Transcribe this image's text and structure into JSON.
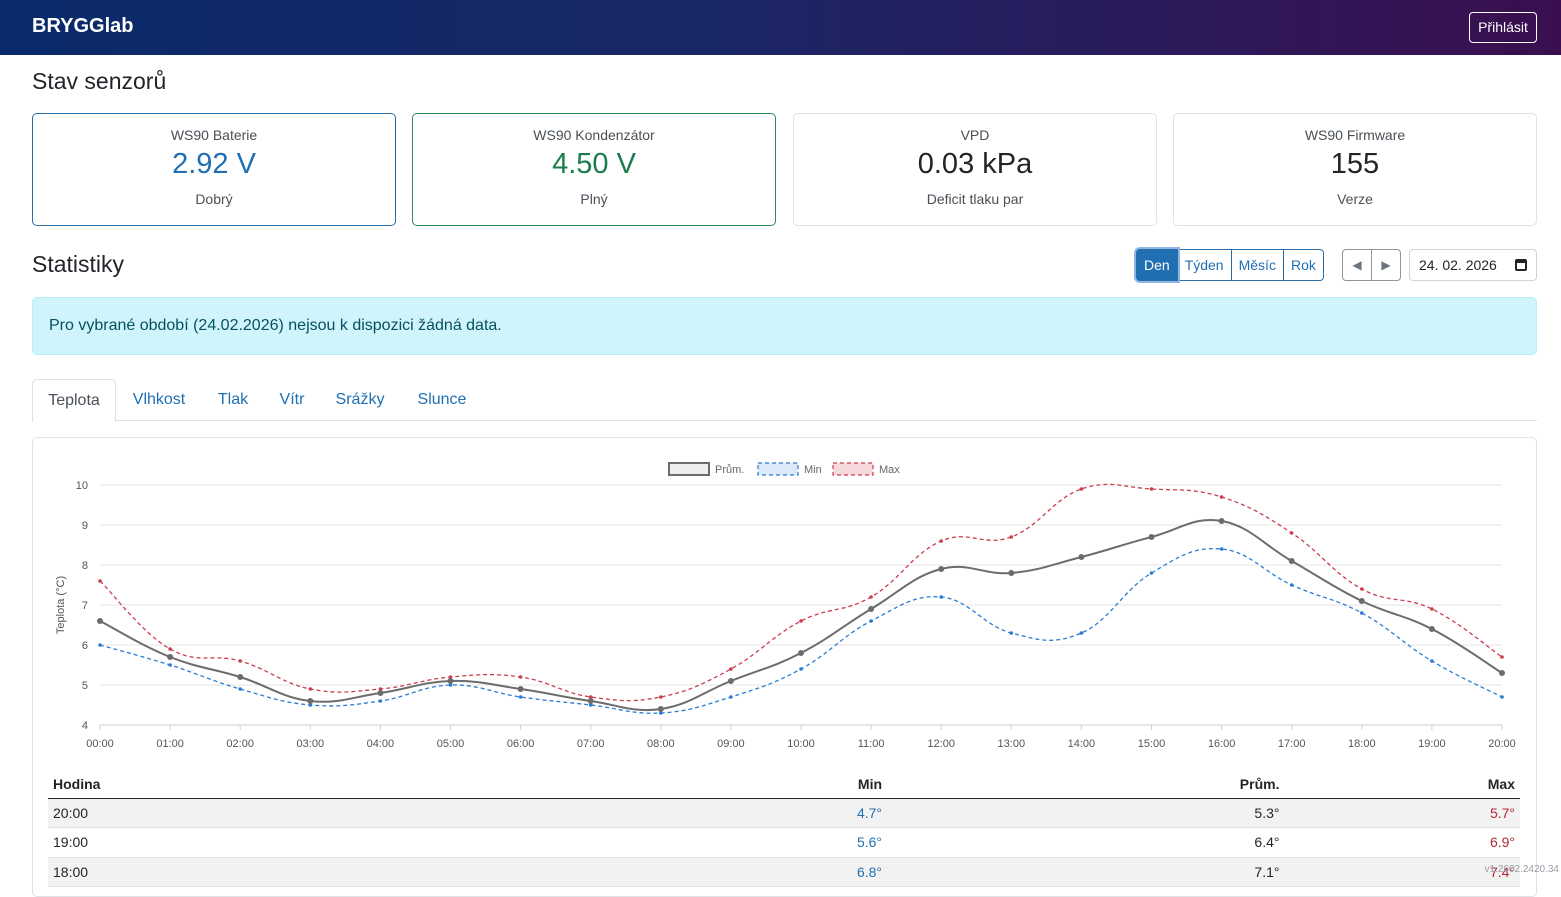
{
  "header": {
    "brand": "BRYGGlab",
    "login_label": "Přihlásit"
  },
  "sensors": {
    "title": "Stav senzorů",
    "cards": [
      {
        "label": "WS90 Baterie",
        "value": "2.92 V",
        "sub": "Dobrý"
      },
      {
        "label": "WS90 Kondenzátor",
        "value": "4.50 V",
        "sub": "Plný"
      },
      {
        "label": "VPD",
        "value": "0.03 kPa",
        "sub": "Deficit tlaku par"
      },
      {
        "label": "WS90 Firmware",
        "value": "155",
        "sub": "Verze"
      }
    ]
  },
  "stats": {
    "title": "Statistiky",
    "periods": [
      "Den",
      "Týden",
      "Měsíc",
      "Rok"
    ],
    "active_period": "Den",
    "prev_glyph": "◀",
    "next_glyph": "▶",
    "date_value": "24. 02. 2026"
  },
  "alert": {
    "text": "Pro vybrané období (24.02.2026) nejsou k dispozici žádná data."
  },
  "tabs": [
    "Teplota",
    "Vlhkost",
    "Tlak",
    "Vítr",
    "Srážky",
    "Slunce"
  ],
  "colors": {
    "avg": "#6c6c6c",
    "min": "#2a7bd4",
    "max": "#cc3d4d"
  },
  "chart_data": {
    "type": "line",
    "ylabel": "Teplota (°C)",
    "ylim": [
      4,
      10
    ],
    "yticks": [
      "4",
      "5",
      "6",
      "7",
      "8",
      "9",
      "10"
    ],
    "legend_position": "top-center",
    "grid": true,
    "x": [
      "00:00",
      "01:00",
      "02:00",
      "03:00",
      "04:00",
      "05:00",
      "06:00",
      "07:00",
      "08:00",
      "09:00",
      "10:00",
      "11:00",
      "12:00",
      "13:00",
      "14:00",
      "15:00",
      "16:00",
      "17:00",
      "18:00",
      "19:00",
      "20:00"
    ],
    "series": [
      {
        "name": "Prům.",
        "values": [
          6.6,
          5.7,
          5.2,
          4.6,
          4.8,
          5.1,
          4.9,
          4.6,
          4.4,
          5.1,
          5.8,
          6.9,
          7.9,
          7.8,
          8.2,
          8.7,
          9.1,
          8.1,
          7.1,
          6.4,
          5.3
        ]
      },
      {
        "name": "Min",
        "values": [
          6.0,
          5.5,
          4.9,
          4.5,
          4.6,
          5.0,
          4.7,
          4.5,
          4.3,
          4.7,
          5.4,
          6.6,
          7.2,
          6.3,
          6.3,
          7.8,
          8.4,
          7.5,
          6.8,
          5.6,
          4.7
        ]
      },
      {
        "name": "Max",
        "values": [
          7.6,
          5.9,
          5.6,
          4.9,
          4.9,
          5.2,
          5.2,
          4.7,
          4.7,
          5.4,
          6.6,
          7.2,
          8.6,
          8.7,
          9.9,
          9.9,
          9.7,
          8.8,
          7.4,
          6.9,
          5.7
        ]
      }
    ]
  },
  "table": {
    "headers": {
      "hour": "Hodina",
      "min": "Min",
      "avg": "Prům.",
      "max": "Max"
    },
    "rows": [
      {
        "hour": "20:00",
        "min": "4.7°",
        "avg": "5.3°",
        "max": "5.7°"
      },
      {
        "hour": "19:00",
        "min": "5.6°",
        "avg": "6.4°",
        "max": "6.9°"
      },
      {
        "hour": "18:00",
        "min": "6.8°",
        "avg": "7.1°",
        "max": "7.4°"
      }
    ]
  },
  "footer": {
    "version": "v1.2602.2420.34"
  }
}
